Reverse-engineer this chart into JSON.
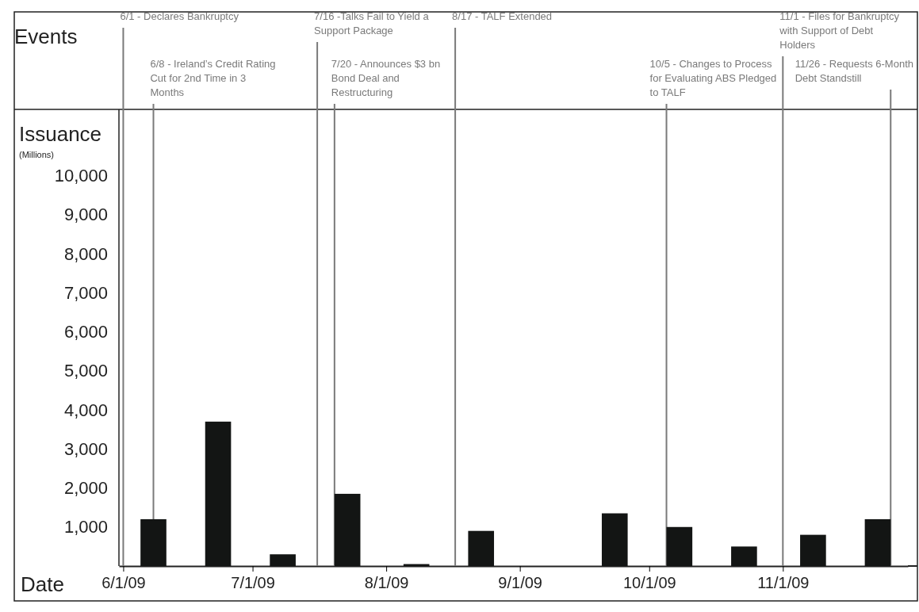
{
  "chart_data": {
    "type": "bar",
    "xlabel": "Date",
    "ylabel": "Issuance$_{(Millions)}$",
    "annotations": [
      "Events"
    ],
    "x": [
      "2009-06-08",
      "2009-06-23",
      "2009-07-08",
      "2009-07-23",
      "2009-08-08",
      "2009-08-23",
      "2009-09-08",
      "2009-09-23",
      "2009-10-08",
      "2009-10-23",
      "2009-11-08",
      "2009-11-23"
    ],
    "values": [
      1200,
      3700,
      300,
      1850,
      50,
      900,
      0,
      1350,
      1000,
      500,
      800,
      1200
    ],
    "color": "#131514",
    "xlim": [
      "2009-05-31",
      "2009-11-30"
    ],
    "xticks": [
      {
        "value": "2009-06-01",
        "label": "6/1/09"
      },
      {
        "value": "2009-07-01",
        "label": "7/1/09"
      },
      {
        "value": "2009-08-01",
        "label": "8/1/09"
      },
      {
        "value": "2009-09-01",
        "label": "9/1/09"
      },
      {
        "value": "2009-10-01",
        "label": "10/1/09"
      },
      {
        "value": "2009-11-01",
        "label": "11/1/09"
      }
    ],
    "ylim": [
      0,
      11700
    ],
    "yticks": [
      {
        "value": 1000,
        "label": "1,000"
      },
      {
        "value": 2000,
        "label": "2,000"
      },
      {
        "value": 3000,
        "label": "3,000"
      },
      {
        "value": 4000,
        "label": "4,000"
      },
      {
        "value": 5000,
        "label": "5,000"
      },
      {
        "value": 6000,
        "label": "6,000"
      },
      {
        "value": 7000,
        "label": "7,000"
      },
      {
        "value": 8000,
        "label": "8,000"
      },
      {
        "value": 9000,
        "label": "9,000"
      },
      {
        "value": 10000,
        "label": "10,000"
      }
    ],
    "ref_lines": [
      {
        "axis": "x",
        "value": "2009-06-01",
        "label": "6/1 - Declares Bankruptcy",
        "color": "#7a7a7a"
      },
      {
        "axis": "x",
        "value": "2009-06-08",
        "label": "6/8 - Ireland’s Credit Rating Cut for 2nd Time in 3 Months",
        "color": "#7a7a7a"
      },
      {
        "axis": "x",
        "value": "2009-07-16",
        "label": "7/16 -Talks Fail to Yield a Support Package",
        "color": "#7a7a7a"
      },
      {
        "axis": "x",
        "value": "2009-07-20",
        "label": "7/20 - Announces $3 bn Bond Deal and Restructuring",
        "color": "#7a7a7a"
      },
      {
        "axis": "x",
        "value": "2009-08-17",
        "label": "8/17 - TALF Extended",
        "color": "#7a7a7a"
      },
      {
        "axis": "x",
        "value": "2009-10-05",
        "label": "10/5 - Changes to Process for Evaluating ABS Pledged to TALF",
        "color": "#7a7a7a"
      },
      {
        "axis": "x",
        "value": "2009-11-01",
        "label": "11/1 - Files for Bankruptcy with Support of Debt Holders",
        "color": "#7a7a7a"
      },
      {
        "axis": "x",
        "value": "2009-11-26",
        "label": "11/26 - Requests 6-Month Debt Standstill",
        "color": "#7a7a7a"
      }
    ]
  }
}
